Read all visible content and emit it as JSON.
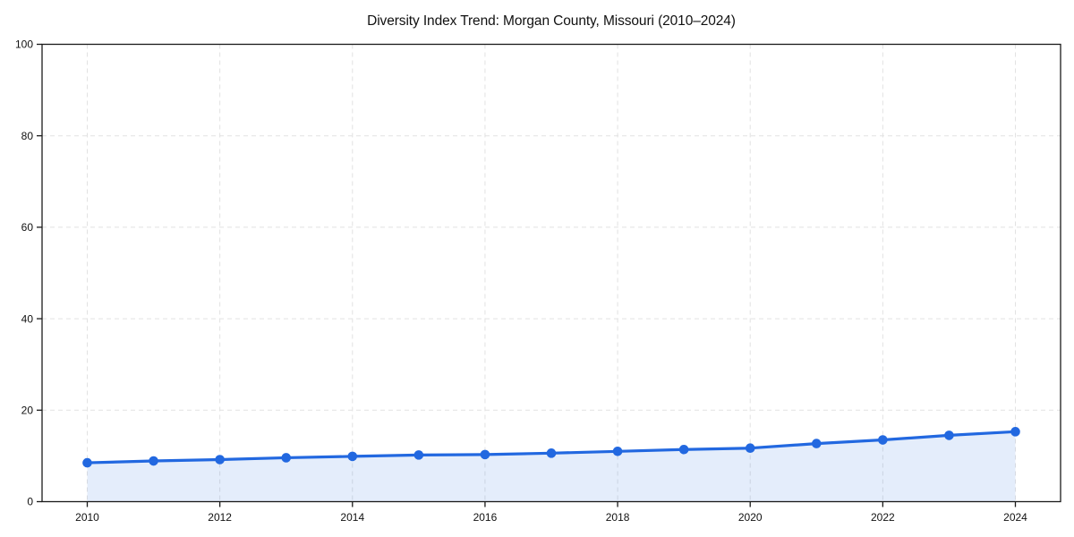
{
  "chart_data": {
    "type": "area",
    "title": "Diversity Index Trend: Morgan County, Missouri (2010–2024)",
    "xlabel": "",
    "ylabel": "",
    "x": [
      2010,
      2011,
      2012,
      2013,
      2014,
      2015,
      2016,
      2017,
      2018,
      2019,
      2020,
      2021,
      2022,
      2023,
      2024
    ],
    "series": [
      {
        "name": "Diversity Index",
        "values": [
          8.5,
          8.9,
          9.2,
          9.6,
          9.9,
          10.2,
          10.3,
          10.6,
          11.0,
          11.4,
          11.7,
          12.7,
          13.5,
          14.5,
          15.3
        ]
      }
    ],
    "xlim": [
      2009.3,
      2024.7
    ],
    "ylim": [
      0,
      100
    ],
    "yticks": [
      0,
      20,
      40,
      60,
      80,
      100
    ],
    "xticks": [
      2010,
      2012,
      2014,
      2016,
      2018,
      2020,
      2022,
      2024
    ],
    "grid": true,
    "grid_style": "dashed",
    "legend_position": "none",
    "marker": "circle",
    "colors": {
      "line": "#2268e0",
      "marker": "#2268e0",
      "area_fill": "#2268e0",
      "area_fill_opacity": 0.12,
      "grid": "#e2e2e2",
      "spine": "#1a1a1a",
      "text": "#111111",
      "background": "#ffffff"
    }
  }
}
